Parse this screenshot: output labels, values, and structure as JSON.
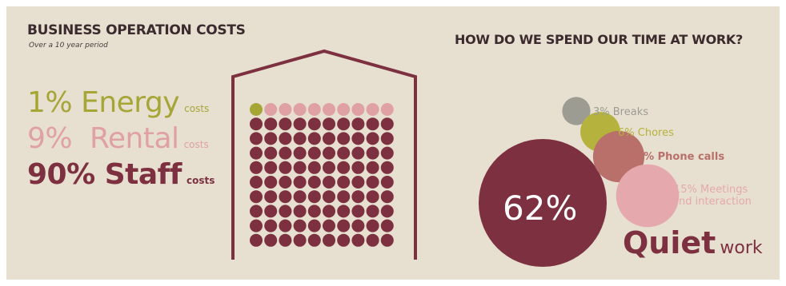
{
  "colors": {
    "background": "#e7dfcf",
    "heading": "#3b2b2e",
    "energy": "#a6a637",
    "rental": "#e0a1a5",
    "staff": "#7d3040",
    "chores": "#b5b23d",
    "breaks": "#9c9c92",
    "phone": "#b96f6a",
    "meetings": "#e5a9ad",
    "quiet": "#7d3040",
    "house_outline": "#7d3040"
  },
  "chart_data": [
    {
      "type": "waffle",
      "title": "BUSINESS OPERATION COSTS",
      "subtitle": "Over a 10 year period",
      "grid": {
        "rows": 10,
        "cols": 10
      },
      "categories": [
        "Energy",
        "Rental",
        "Staff"
      ],
      "values": [
        1,
        9,
        90
      ],
      "labels": [
        {
          "percent": "1%",
          "name": "Energy",
          "suffix": "costs"
        },
        {
          "percent": "9%",
          "name": "Rental",
          "suffix": "costs"
        },
        {
          "percent": "90%",
          "name": "Staff",
          "suffix": "costs"
        }
      ]
    },
    {
      "type": "bubble",
      "title": "HOW DO WE SPEND OUR TIME AT WORK?",
      "categories": [
        "Breaks",
        "Chores",
        "Phone calls",
        "Meetings and interaction",
        "Quiet work"
      ],
      "values": [
        3,
        6,
        10,
        15,
        62
      ],
      "labels": {
        "breaks": "3% Breaks",
        "chores": "6% Chores",
        "phone": "10% Phone calls",
        "meetings_line1": "15% Meetings",
        "meetings_line2": "and interaction",
        "quiet_value": "62%",
        "quiet_word1": "Quiet",
        "quiet_word2": "work"
      }
    }
  ]
}
